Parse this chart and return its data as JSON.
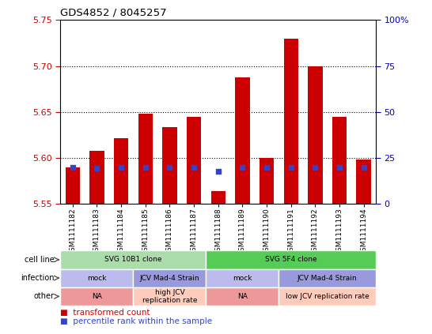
{
  "title": "GDS4852 / 8045257",
  "samples": [
    "GSM1111182",
    "GSM1111183",
    "GSM1111184",
    "GSM1111185",
    "GSM1111186",
    "GSM1111187",
    "GSM1111188",
    "GSM1111189",
    "GSM1111190",
    "GSM1111191",
    "GSM1111192",
    "GSM1111193",
    "GSM1111194"
  ],
  "bar_tops": [
    5.59,
    5.608,
    5.621,
    5.648,
    5.633,
    5.645,
    5.564,
    5.688,
    5.6,
    5.73,
    5.7,
    5.645,
    5.598
  ],
  "blue_values": [
    5.59,
    5.589,
    5.59,
    5.59,
    5.59,
    5.59,
    5.585,
    5.59,
    5.59,
    5.59,
    5.59,
    5.59,
    5.59
  ],
  "bar_bottom": 5.55,
  "ylim": [
    5.55,
    5.75
  ],
  "yticks_left": [
    5.55,
    5.6,
    5.65,
    5.7,
    5.75
  ],
  "yticks_right": [
    0,
    25,
    50,
    75,
    100
  ],
  "y_right_labels": [
    "0",
    "25",
    "50",
    "75",
    "100%"
  ],
  "bar_color": "#cc0000",
  "blue_color": "#3344cc",
  "bar_width": 0.6,
  "cell_line_row": {
    "groups": [
      {
        "label": "SVG 10B1 clone",
        "start": 0,
        "end": 5,
        "color": "#aaddaa"
      },
      {
        "label": "SVG 5F4 clone",
        "start": 6,
        "end": 12,
        "color": "#55cc55"
      }
    ]
  },
  "infection_row": {
    "groups": [
      {
        "label": "mock",
        "start": 0,
        "end": 2,
        "color": "#bbbbee"
      },
      {
        "label": "JCV Mad-4 Strain",
        "start": 3,
        "end": 5,
        "color": "#9999dd"
      },
      {
        "label": "mock",
        "start": 6,
        "end": 8,
        "color": "#bbbbee"
      },
      {
        "label": "JCV Mad-4 Strain",
        "start": 9,
        "end": 12,
        "color": "#9999dd"
      }
    ]
  },
  "other_row": {
    "groups": [
      {
        "label": "NA",
        "start": 0,
        "end": 2,
        "color": "#ee9999"
      },
      {
        "label": "high JCV\nreplication rate",
        "start": 3,
        "end": 5,
        "color": "#ffccbb"
      },
      {
        "label": "NA",
        "start": 6,
        "end": 8,
        "color": "#ee9999"
      },
      {
        "label": "low JCV replication rate",
        "start": 9,
        "end": 12,
        "color": "#ffccbb"
      }
    ]
  },
  "row_labels": [
    "cell line",
    "infection",
    "other"
  ],
  "legend_items": [
    {
      "label": "transformed count",
      "color": "#cc0000"
    },
    {
      "label": "percentile rank within the sample",
      "color": "#3344cc"
    }
  ],
  "bg_color": "#ffffff",
  "axis_label_color_left": "#cc0000",
  "axis_label_color_right": "#0000cc"
}
